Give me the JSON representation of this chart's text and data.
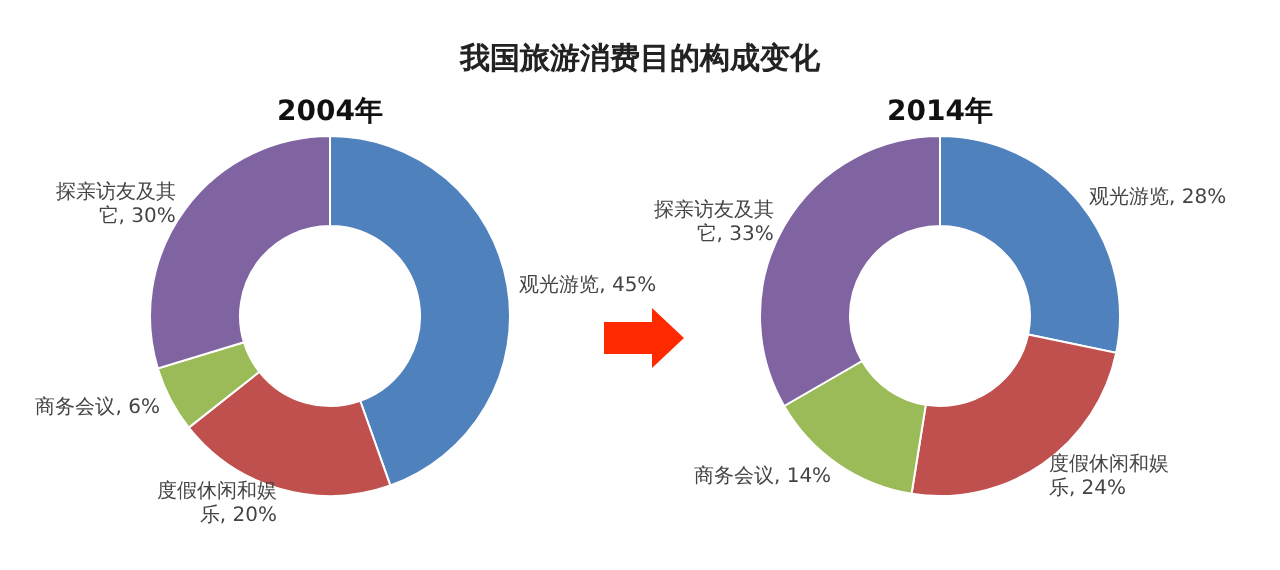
{
  "chart_data": [
    {
      "type": "donut",
      "title": "我国旅游消费目的构成变化",
      "subtitle": "2004年",
      "categories": [
        "观光游览",
        "度假休闲和娱乐",
        "商务会议",
        "探亲访友及其它"
      ],
      "values": [
        45,
        20,
        6,
        30
      ],
      "value_labels": [
        "45%",
        "20%",
        "6%",
        "30%"
      ],
      "colors": [
        "#4f81bd",
        "#c0504d",
        "#9bbb59",
        "#8064a2"
      ]
    },
    {
      "type": "donut",
      "subtitle": "2014年",
      "categories": [
        "观光游览",
        "度假休闲和娱乐",
        "商务会议",
        "探亲访友及其它"
      ],
      "values": [
        28,
        24,
        14,
        33
      ],
      "value_labels": [
        "28%",
        "24%",
        "14%",
        "33%"
      ],
      "colors": [
        "#4f81bd",
        "#c0504d",
        "#9bbb59",
        "#8064a2"
      ]
    }
  ]
}
